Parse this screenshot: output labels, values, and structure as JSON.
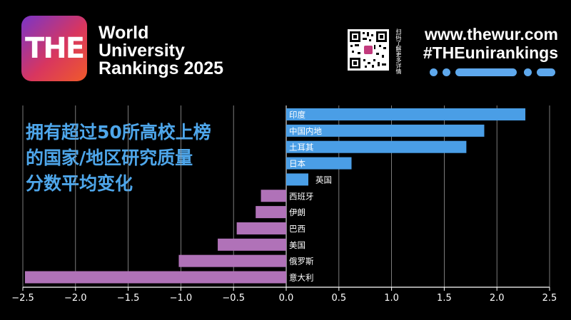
{
  "brand": {
    "logo_text": "THE",
    "name_lines": [
      "World",
      "University",
      "Rankings 2025"
    ]
  },
  "qr": {
    "caption": "扫码了解更多详情"
  },
  "header": {
    "website": "www.thewur.com",
    "hashtag": "#THEunirankings"
  },
  "headline": {
    "lines": [
      "拥有超过50所高校上榜",
      "的国家/地区研究质量",
      "分数平均变化"
    ]
  },
  "colors": {
    "positive": "#4a9ee6",
    "negative": "#b072b8",
    "headline": "#4ea6ea",
    "axis": "#ffffff",
    "grid": "#9a9a9a"
  },
  "chart_data": {
    "type": "bar",
    "orientation": "horizontal",
    "categories": [
      "印度",
      "中国内地",
      "土耳其",
      "日本",
      "英国",
      "西班牙",
      "伊朗",
      "巴西",
      "美国",
      "俄罗斯",
      "意大利"
    ],
    "values": [
      2.27,
      1.88,
      1.71,
      0.62,
      0.21,
      -0.24,
      -0.29,
      -0.47,
      -0.65,
      -1.02,
      -2.48
    ],
    "xlim": [
      -2.5,
      2.5
    ],
    "xticks": [
      -2.5,
      -2.0,
      -1.5,
      -1.0,
      -0.5,
      0.0,
      0.5,
      1.0,
      1.5,
      2.0,
      2.5
    ],
    "xtick_labels": [
      "−2.5",
      "−2.0",
      "−1.5",
      "−1.0",
      "−0.5",
      "0.0",
      "0.5",
      "1.0",
      "1.5",
      "2.0",
      "2.5"
    ],
    "grid": "vertical",
    "title": "",
    "xlabel": "",
    "ylabel": ""
  }
}
